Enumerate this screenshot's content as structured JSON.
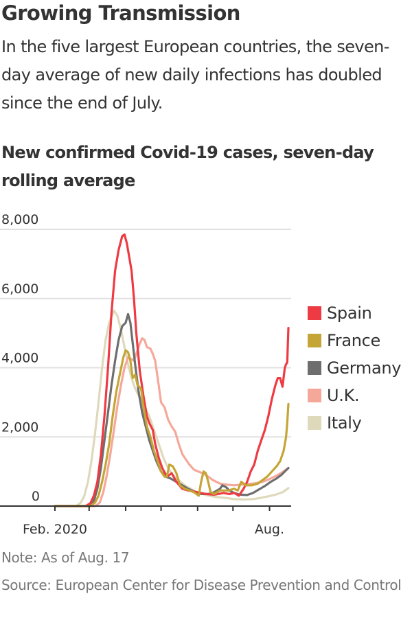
{
  "header": {
    "title": "Growing Transmission",
    "subtitle": "In the five largest European countries, the seven-day average of new daily infections has doubled since the end of July."
  },
  "footer": {
    "note": "Note: As of Aug. 17",
    "source": "Source: European Center for Disease Prevention and Control"
  },
  "chart_data": {
    "type": "line",
    "title": "New confirmed Covid-19 cases, seven-day rolling average",
    "xlabel": "",
    "ylabel": "",
    "x_units": "days since Feb. 1, 2020",
    "xlim": [
      0,
      198
    ],
    "ylim": [
      0,
      8000
    ],
    "grid": true,
    "yticks": [
      0,
      2000,
      4000,
      6000,
      8000
    ],
    "ytick_labels": [
      "0",
      "2,000",
      "4,000",
      "6,000",
      "8,000"
    ],
    "xticks": [
      0,
      29,
      60,
      90,
      121,
      151,
      182
    ],
    "xtick_labels": [
      "Feb. 2020",
      "",
      "",
      "",
      "",
      "",
      "Aug."
    ],
    "legend_position": "right",
    "series": [
      {
        "name": "Spain",
        "color": "#ee3a43",
        "points": [
          [
            0,
            0
          ],
          [
            26,
            0
          ],
          [
            30,
            80
          ],
          [
            33,
            300
          ],
          [
            36,
            700
          ],
          [
            39,
            1500
          ],
          [
            42,
            2600
          ],
          [
            45,
            4000
          ],
          [
            48,
            5600
          ],
          [
            51,
            6800
          ],
          [
            54,
            7400
          ],
          [
            57,
            7800
          ],
          [
            59,
            7850
          ],
          [
            61,
            7600
          ],
          [
            63,
            7200
          ],
          [
            65,
            6800
          ],
          [
            67,
            6000
          ],
          [
            69,
            5000
          ],
          [
            72,
            3900
          ],
          [
            75,
            3200
          ],
          [
            78,
            2600
          ],
          [
            80,
            2400
          ],
          [
            83,
            2200
          ],
          [
            85,
            1800
          ],
          [
            88,
            1400
          ],
          [
            91,
            1100
          ],
          [
            95,
            850
          ],
          [
            99,
            950
          ],
          [
            103,
            700
          ],
          [
            108,
            500
          ],
          [
            113,
            450
          ],
          [
            118,
            420
          ],
          [
            124,
            380
          ],
          [
            128,
            350
          ],
          [
            135,
            330
          ],
          [
            143,
            380
          ],
          [
            148,
            350
          ],
          [
            152,
            380
          ],
          [
            156,
            300
          ],
          [
            160,
            500
          ],
          [
            163,
            700
          ],
          [
            166,
            1000
          ],
          [
            169,
            1200
          ],
          [
            172,
            1600
          ],
          [
            175,
            1900
          ],
          [
            178,
            2200
          ],
          [
            181,
            2600
          ],
          [
            184,
            3100
          ],
          [
            187,
            3500
          ],
          [
            189,
            3700
          ],
          [
            191,
            3700
          ],
          [
            193,
            3450
          ],
          [
            195,
            4000
          ],
          [
            196,
            4100
          ],
          [
            197,
            4150
          ],
          [
            198,
            5150
          ]
        ]
      },
      {
        "name": "France",
        "color": "#c4a535",
        "points": [
          [
            0,
            0
          ],
          [
            30,
            0
          ],
          [
            34,
            100
          ],
          [
            37,
            300
          ],
          [
            40,
            700
          ],
          [
            43,
            1200
          ],
          [
            46,
            1800
          ],
          [
            49,
            2600
          ],
          [
            52,
            3300
          ],
          [
            55,
            3800
          ],
          [
            58,
            4300
          ],
          [
            60,
            4500
          ],
          [
            62,
            4450
          ],
          [
            64,
            4200
          ],
          [
            66,
            3700
          ],
          [
            68,
            3800
          ],
          [
            70,
            3500
          ],
          [
            73,
            3400
          ],
          [
            75,
            2900
          ],
          [
            78,
            2300
          ],
          [
            81,
            2000
          ],
          [
            84,
            1600
          ],
          [
            87,
            1300
          ],
          [
            90,
            1000
          ],
          [
            93,
            850
          ],
          [
            95,
            850
          ],
          [
            97,
            1200
          ],
          [
            100,
            1150
          ],
          [
            103,
            950
          ],
          [
            106,
            600
          ],
          [
            110,
            500
          ],
          [
            114,
            450
          ],
          [
            118,
            400
          ],
          [
            120,
            350
          ],
          [
            122,
            300
          ],
          [
            124,
            700
          ],
          [
            126,
            1000
          ],
          [
            128,
            950
          ],
          [
            130,
            700
          ],
          [
            132,
            400
          ],
          [
            135,
            350
          ],
          [
            140,
            450
          ],
          [
            147,
            450
          ],
          [
            152,
            500
          ],
          [
            155,
            450
          ],
          [
            158,
            700
          ],
          [
            162,
            600
          ],
          [
            167,
            600
          ],
          [
            172,
            650
          ],
          [
            176,
            750
          ],
          [
            180,
            850
          ],
          [
            184,
            1000
          ],
          [
            188,
            1150
          ],
          [
            191,
            1300
          ],
          [
            194,
            1600
          ],
          [
            196,
            2000
          ],
          [
            197,
            2400
          ],
          [
            198,
            2950
          ]
        ]
      },
      {
        "name": "Germany",
        "color": "#6e6e6e",
        "points": [
          [
            0,
            0
          ],
          [
            30,
            0
          ],
          [
            33,
            150
          ],
          [
            36,
            500
          ],
          [
            39,
            1100
          ],
          [
            42,
            1900
          ],
          [
            45,
            2700
          ],
          [
            48,
            3500
          ],
          [
            51,
            4200
          ],
          [
            54,
            4800
          ],
          [
            57,
            5200
          ],
          [
            60,
            5300
          ],
          [
            62,
            5550
          ],
          [
            64,
            5300
          ],
          [
            66,
            4700
          ],
          [
            68,
            4100
          ],
          [
            71,
            3300
          ],
          [
            74,
            2700
          ],
          [
            77,
            2300
          ],
          [
            80,
            1900
          ],
          [
            83,
            1600
          ],
          [
            86,
            1300
          ],
          [
            90,
            1000
          ],
          [
            94,
            850
          ],
          [
            98,
            800
          ],
          [
            103,
            700
          ],
          [
            108,
            600
          ],
          [
            113,
            500
          ],
          [
            118,
            420
          ],
          [
            124,
            350
          ],
          [
            130,
            350
          ],
          [
            135,
            400
          ],
          [
            140,
            500
          ],
          [
            142,
            600
          ],
          [
            145,
            550
          ],
          [
            148,
            450
          ],
          [
            152,
            380
          ],
          [
            157,
            330
          ],
          [
            163,
            320
          ],
          [
            168,
            380
          ],
          [
            173,
            480
          ],
          [
            178,
            580
          ],
          [
            183,
            700
          ],
          [
            188,
            800
          ],
          [
            192,
            900
          ],
          [
            195,
            1000
          ],
          [
            198,
            1100
          ]
        ]
      },
      {
        "name": "U.K.",
        "color": "#f5a899",
        "points": [
          [
            0,
            0
          ],
          [
            34,
            0
          ],
          [
            38,
            100
          ],
          [
            41,
            400
          ],
          [
            44,
            900
          ],
          [
            47,
            1500
          ],
          [
            50,
            2200
          ],
          [
            53,
            2900
          ],
          [
            56,
            3500
          ],
          [
            59,
            4000
          ],
          [
            62,
            4300
          ],
          [
            65,
            4250
          ],
          [
            67,
            4200
          ],
          [
            70,
            4500
          ],
          [
            72,
            4700
          ],
          [
            74,
            4850
          ],
          [
            76,
            4800
          ],
          [
            78,
            4600
          ],
          [
            81,
            4550
          ],
          [
            83,
            4400
          ],
          [
            85,
            4200
          ],
          [
            88,
            3500
          ],
          [
            90,
            3000
          ],
          [
            93,
            2850
          ],
          [
            96,
            2500
          ],
          [
            99,
            2300
          ],
          [
            102,
            2150
          ],
          [
            105,
            1800
          ],
          [
            108,
            1500
          ],
          [
            111,
            1350
          ],
          [
            114,
            1200
          ],
          [
            118,
            1050
          ],
          [
            123,
            980
          ],
          [
            128,
            900
          ],
          [
            134,
            750
          ],
          [
            140,
            650
          ],
          [
            146,
            620
          ],
          [
            152,
            600
          ],
          [
            158,
            620
          ],
          [
            164,
            640
          ],
          [
            170,
            660
          ],
          [
            176,
            700
          ],
          [
            182,
            780
          ],
          [
            188,
            880
          ],
          [
            193,
            980
          ],
          [
            198,
            1100
          ]
        ]
      },
      {
        "name": "Italy",
        "color": "#dfd9bb",
        "points": [
          [
            0,
            0
          ],
          [
            18,
            0
          ],
          [
            22,
            100
          ],
          [
            25,
            300
          ],
          [
            28,
            700
          ],
          [
            31,
            1300
          ],
          [
            34,
            2100
          ],
          [
            37,
            3000
          ],
          [
            40,
            4000
          ],
          [
            43,
            4800
          ],
          [
            46,
            5300
          ],
          [
            50,
            5650
          ],
          [
            53,
            5500
          ],
          [
            56,
            5100
          ],
          [
            59,
            4600
          ],
          [
            62,
            4100
          ],
          [
            65,
            3700
          ],
          [
            68,
            3400
          ],
          [
            71,
            3200
          ],
          [
            74,
            3000
          ],
          [
            77,
            2800
          ],
          [
            80,
            2600
          ],
          [
            84,
            2200
          ],
          [
            88,
            1800
          ],
          [
            92,
            1400
          ],
          [
            96,
            1100
          ],
          [
            100,
            900
          ],
          [
            105,
            750
          ],
          [
            110,
            600
          ],
          [
            116,
            480
          ],
          [
            122,
            380
          ],
          [
            128,
            320
          ],
          [
            134,
            280
          ],
          [
            140,
            250
          ],
          [
            146,
            230
          ],
          [
            152,
            200
          ],
          [
            160,
            190
          ],
          [
            168,
            200
          ],
          [
            175,
            240
          ],
          [
            182,
            290
          ],
          [
            188,
            340
          ],
          [
            193,
            400
          ],
          [
            198,
            520
          ]
        ]
      }
    ]
  }
}
